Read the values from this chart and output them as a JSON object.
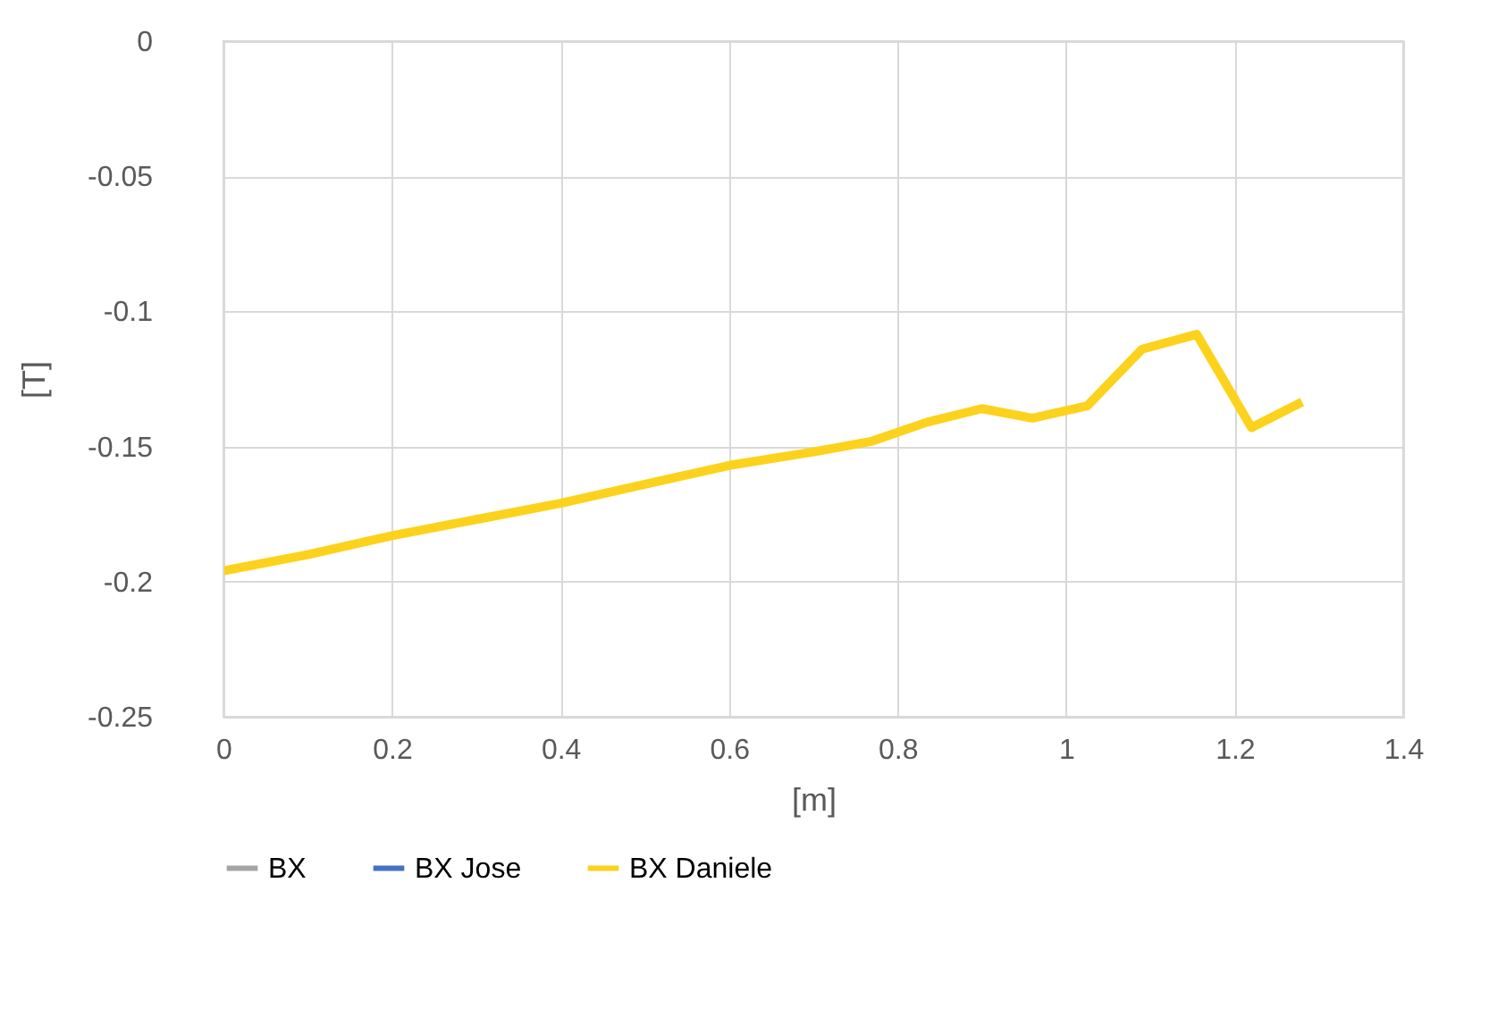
{
  "chart_data": {
    "type": "line",
    "xlabel": "[m]",
    "ylabel": "[T]",
    "x": [
      0,
      0.1,
      0.2,
      0.3,
      0.4,
      0.5,
      0.6,
      0.7,
      0.77,
      0.835,
      0.9,
      0.96,
      1.025,
      1.09,
      1.155,
      1.22,
      1.28
    ],
    "series": [
      {
        "name": "BX",
        "color": "#a5a5a5",
        "values": [
          null,
          null,
          null,
          null,
          null,
          null,
          null,
          null,
          null,
          null,
          null,
          null,
          null,
          null,
          null,
          null,
          null
        ]
      },
      {
        "name": "BX Jose",
        "color": "#4472c4",
        "values": [
          null,
          null,
          null,
          null,
          null,
          null,
          null,
          null,
          null,
          null,
          null,
          null,
          null,
          null,
          null,
          null,
          null
        ]
      },
      {
        "name": "BX Daniele",
        "color": "#fcd21c",
        "values": [
          -0.196,
          -0.19,
          -0.183,
          -0.177,
          -0.171,
          -0.164,
          -0.157,
          -0.152,
          -0.148,
          -0.141,
          -0.136,
          -0.1395,
          -0.135,
          -0.114,
          -0.1085,
          -0.143,
          -0.1335
        ]
      }
    ],
    "xlim": [
      0,
      1.4
    ],
    "xticks": [
      0,
      0.2,
      0.4,
      0.6,
      0.8,
      1,
      1.2,
      1.4
    ],
    "ylim": [
      -0.25,
      0
    ],
    "yticks": [
      -0.25,
      -0.2,
      -0.15,
      -0.1,
      -0.05,
      0
    ],
    "grid": true,
    "legend": "bottom",
    "marker": "none",
    "line_style": "solid"
  }
}
